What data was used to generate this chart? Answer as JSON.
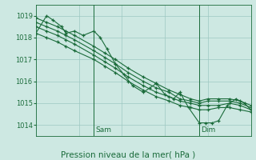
{
  "bg_color": "#cde8e2",
  "grid_color": "#9dc8c2",
  "line_color": "#1a6b3a",
  "marker_color": "#1a6b3a",
  "ylabel_text": "Pression niveau de la mer( hPa )",
  "ylim": [
    1013.5,
    1019.5
  ],
  "yticks": [
    1014,
    1015,
    1016,
    1017,
    1018,
    1019
  ],
  "xlim": [
    0,
    1
  ],
  "vline_x": [
    0.27,
    0.76
  ],
  "vline_labels": [
    "Sam",
    "Dim"
  ],
  "series": [
    {
      "x": [
        0.0,
        0.05,
        0.1,
        0.14,
        0.18,
        0.27,
        0.32,
        0.37,
        0.43,
        0.5,
        0.56,
        0.62,
        0.67,
        0.72,
        0.76,
        0.8,
        0.85,
        0.9,
        0.95,
        1.0
      ],
      "y": [
        1018.2,
        1018.0,
        1017.8,
        1017.6,
        1017.4,
        1017.0,
        1016.7,
        1016.4,
        1016.0,
        1015.6,
        1015.3,
        1015.1,
        1014.9,
        1014.8,
        1014.7,
        1014.7,
        1014.8,
        1014.8,
        1014.7,
        1014.6
      ]
    },
    {
      "x": [
        0.0,
        0.05,
        0.1,
        0.14,
        0.18,
        0.27,
        0.32,
        0.37,
        0.43,
        0.5,
        0.56,
        0.62,
        0.67,
        0.72,
        0.76,
        0.8,
        0.85,
        0.9,
        0.95,
        1.0
      ],
      "y": [
        1018.5,
        1018.3,
        1018.1,
        1017.9,
        1017.7,
        1017.2,
        1016.9,
        1016.6,
        1016.2,
        1015.8,
        1015.5,
        1015.3,
        1015.1,
        1015.0,
        1014.9,
        1014.9,
        1014.9,
        1015.0,
        1014.9,
        1014.7
      ]
    },
    {
      "x": [
        0.0,
        0.05,
        0.1,
        0.14,
        0.18,
        0.27,
        0.32,
        0.37,
        0.43,
        0.5,
        0.56,
        0.62,
        0.67,
        0.72,
        0.76,
        0.8,
        0.85,
        0.9,
        0.95,
        1.0
      ],
      "y": [
        1018.7,
        1018.5,
        1018.3,
        1018.1,
        1017.9,
        1017.4,
        1017.1,
        1016.8,
        1016.4,
        1016.0,
        1015.7,
        1015.5,
        1015.2,
        1015.1,
        1015.0,
        1015.1,
        1015.1,
        1015.1,
        1015.0,
        1014.8
      ]
    },
    {
      "x": [
        0.0,
        0.05,
        0.1,
        0.14,
        0.18,
        0.27,
        0.32,
        0.37,
        0.43,
        0.5,
        0.56,
        0.62,
        0.67,
        0.72,
        0.76,
        0.8,
        0.85,
        0.9,
        0.95,
        1.0
      ],
      "y": [
        1018.9,
        1018.7,
        1018.5,
        1018.3,
        1018.1,
        1017.6,
        1017.3,
        1017.0,
        1016.6,
        1016.2,
        1015.9,
        1015.6,
        1015.4,
        1015.2,
        1015.1,
        1015.2,
        1015.2,
        1015.2,
        1015.1,
        1014.9
      ]
    },
    {
      "x": [
        0.0,
        0.05,
        0.08,
        0.12,
        0.14,
        0.18,
        0.22,
        0.27,
        0.3,
        0.33,
        0.37,
        0.41,
        0.45,
        0.5,
        0.53,
        0.56,
        0.6,
        0.64,
        0.67,
        0.71,
        0.76,
        0.79,
        0.82,
        0.85,
        0.89,
        0.93,
        0.97,
        1.0
      ],
      "y": [
        1018.2,
        1019.0,
        1018.8,
        1018.5,
        1018.2,
        1018.3,
        1018.1,
        1018.3,
        1018.0,
        1017.5,
        1016.8,
        1016.3,
        1015.8,
        1015.5,
        1015.7,
        1015.9,
        1015.4,
        1015.2,
        1015.5,
        1014.8,
        1014.1,
        1014.1,
        1014.1,
        1014.2,
        1014.9,
        1015.2,
        1015.0,
        1014.7
      ]
    }
  ]
}
